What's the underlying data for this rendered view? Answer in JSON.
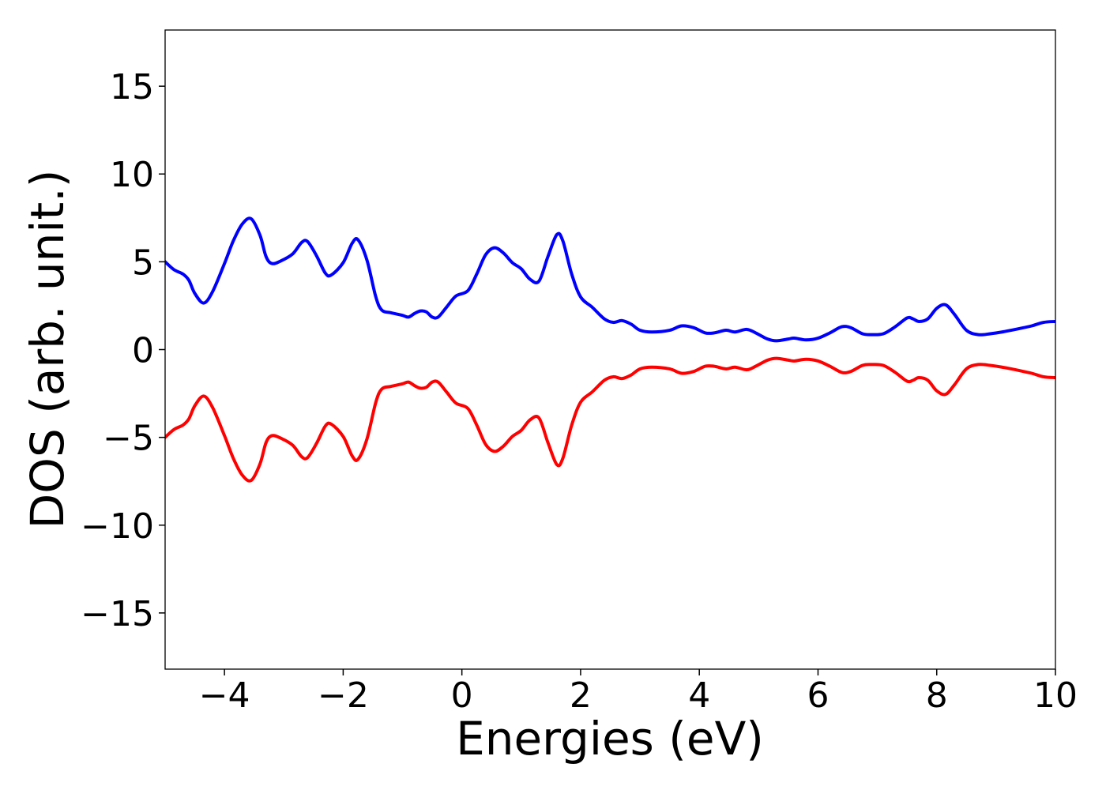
{
  "chart_data": {
    "type": "line",
    "title": "",
    "xlabel": "Energies (eV)",
    "ylabel": "DOS (arb. unit.)",
    "xlim": [
      -5,
      10
    ],
    "ylim": [
      -18.2,
      18.2
    ],
    "grid": false,
    "x_ticks": [
      -4,
      -2,
      0,
      2,
      4,
      6,
      8,
      10
    ],
    "x_tick_labels": [
      "−4",
      "−2",
      "0",
      "2",
      "4",
      "6",
      "8",
      "10"
    ],
    "y_ticks": [
      -15,
      -10,
      -5,
      0,
      5,
      10,
      15
    ],
    "y_tick_labels": [
      "−15",
      "−10",
      "−5",
      "0",
      "5",
      "10",
      "15"
    ],
    "series": [
      {
        "color": "#0000ff",
        "points": [
          [
            -5.0,
            5.0
          ],
          [
            -4.85,
            4.55
          ],
          [
            -4.7,
            4.3
          ],
          [
            -4.6,
            3.95
          ],
          [
            -4.5,
            3.2
          ],
          [
            -4.35,
            2.65
          ],
          [
            -4.2,
            3.3
          ],
          [
            -4.0,
            4.9
          ],
          [
            -3.85,
            6.2
          ],
          [
            -3.7,
            7.15
          ],
          [
            -3.55,
            7.45
          ],
          [
            -3.4,
            6.5
          ],
          [
            -3.3,
            5.3
          ],
          [
            -3.2,
            4.9
          ],
          [
            -3.05,
            5.05
          ],
          [
            -2.85,
            5.45
          ],
          [
            -2.7,
            6.1
          ],
          [
            -2.6,
            6.15
          ],
          [
            -2.45,
            5.35
          ],
          [
            -2.3,
            4.35
          ],
          [
            -2.2,
            4.25
          ],
          [
            -2.0,
            4.95
          ],
          [
            -1.85,
            6.05
          ],
          [
            -1.75,
            6.25
          ],
          [
            -1.6,
            5.1
          ],
          [
            -1.45,
            3.0
          ],
          [
            -1.35,
            2.25
          ],
          [
            -1.2,
            2.1
          ],
          [
            -1.0,
            1.95
          ],
          [
            -0.9,
            1.85
          ],
          [
            -0.8,
            2.05
          ],
          [
            -0.7,
            2.2
          ],
          [
            -0.6,
            2.15
          ],
          [
            -0.5,
            1.85
          ],
          [
            -0.4,
            1.85
          ],
          [
            -0.25,
            2.45
          ],
          [
            -0.1,
            3.05
          ],
          [
            0.1,
            3.35
          ],
          [
            0.25,
            4.3
          ],
          [
            0.4,
            5.4
          ],
          [
            0.55,
            5.8
          ],
          [
            0.7,
            5.5
          ],
          [
            0.85,
            4.95
          ],
          [
            1.0,
            4.6
          ],
          [
            1.15,
            4.0
          ],
          [
            1.3,
            3.9
          ],
          [
            1.45,
            5.3
          ],
          [
            1.6,
            6.55
          ],
          [
            1.7,
            6.2
          ],
          [
            1.85,
            4.3
          ],
          [
            2.0,
            3.0
          ],
          [
            2.2,
            2.4
          ],
          [
            2.4,
            1.75
          ],
          [
            2.55,
            1.55
          ],
          [
            2.7,
            1.65
          ],
          [
            2.85,
            1.45
          ],
          [
            3.0,
            1.1
          ],
          [
            3.2,
            1.0
          ],
          [
            3.5,
            1.1
          ],
          [
            3.7,
            1.35
          ],
          [
            3.9,
            1.25
          ],
          [
            4.1,
            0.95
          ],
          [
            4.25,
            0.95
          ],
          [
            4.45,
            1.1
          ],
          [
            4.6,
            1.0
          ],
          [
            4.8,
            1.15
          ],
          [
            4.95,
            0.95
          ],
          [
            5.15,
            0.6
          ],
          [
            5.3,
            0.5
          ],
          [
            5.5,
            0.6
          ],
          [
            5.6,
            0.65
          ],
          [
            5.8,
            0.55
          ],
          [
            6.0,
            0.65
          ],
          [
            6.2,
            0.95
          ],
          [
            6.4,
            1.3
          ],
          [
            6.55,
            1.25
          ],
          [
            6.75,
            0.9
          ],
          [
            6.9,
            0.85
          ],
          [
            7.1,
            0.9
          ],
          [
            7.3,
            1.3
          ],
          [
            7.5,
            1.8
          ],
          [
            7.6,
            1.75
          ],
          [
            7.7,
            1.6
          ],
          [
            7.85,
            1.75
          ],
          [
            8.0,
            2.35
          ],
          [
            8.15,
            2.55
          ],
          [
            8.3,
            2.0
          ],
          [
            8.5,
            1.1
          ],
          [
            8.7,
            0.85
          ],
          [
            8.9,
            0.9
          ],
          [
            9.1,
            1.0
          ],
          [
            9.4,
            1.2
          ],
          [
            9.6,
            1.35
          ],
          [
            9.8,
            1.55
          ],
          [
            10.0,
            1.6
          ]
        ]
      },
      {
        "color": "#ff0000",
        "points": [
          [
            -5.0,
            -5.0
          ],
          [
            -4.85,
            -4.55
          ],
          [
            -4.7,
            -4.3
          ],
          [
            -4.6,
            -3.95
          ],
          [
            -4.5,
            -3.2
          ],
          [
            -4.35,
            -2.65
          ],
          [
            -4.2,
            -3.3
          ],
          [
            -4.0,
            -4.9
          ],
          [
            -3.85,
            -6.2
          ],
          [
            -3.7,
            -7.15
          ],
          [
            -3.55,
            -7.45
          ],
          [
            -3.4,
            -6.5
          ],
          [
            -3.3,
            -5.3
          ],
          [
            -3.2,
            -4.9
          ],
          [
            -3.05,
            -5.05
          ],
          [
            -2.85,
            -5.45
          ],
          [
            -2.7,
            -6.1
          ],
          [
            -2.6,
            -6.15
          ],
          [
            -2.45,
            -5.35
          ],
          [
            -2.3,
            -4.35
          ],
          [
            -2.2,
            -4.25
          ],
          [
            -2.0,
            -4.95
          ],
          [
            -1.85,
            -6.05
          ],
          [
            -1.75,
            -6.25
          ],
          [
            -1.6,
            -5.1
          ],
          [
            -1.45,
            -3.0
          ],
          [
            -1.35,
            -2.25
          ],
          [
            -1.2,
            -2.1
          ],
          [
            -1.0,
            -1.95
          ],
          [
            -0.9,
            -1.85
          ],
          [
            -0.8,
            -2.05
          ],
          [
            -0.7,
            -2.2
          ],
          [
            -0.6,
            -2.15
          ],
          [
            -0.5,
            -1.85
          ],
          [
            -0.4,
            -1.85
          ],
          [
            -0.25,
            -2.45
          ],
          [
            -0.1,
            -3.05
          ],
          [
            0.1,
            -3.35
          ],
          [
            0.25,
            -4.3
          ],
          [
            0.4,
            -5.4
          ],
          [
            0.55,
            -5.8
          ],
          [
            0.7,
            -5.5
          ],
          [
            0.85,
            -4.95
          ],
          [
            1.0,
            -4.6
          ],
          [
            1.15,
            -4.0
          ],
          [
            1.3,
            -3.9
          ],
          [
            1.45,
            -5.3
          ],
          [
            1.6,
            -6.55
          ],
          [
            1.7,
            -6.2
          ],
          [
            1.85,
            -4.3
          ],
          [
            2.0,
            -3.0
          ],
          [
            2.2,
            -2.4
          ],
          [
            2.4,
            -1.75
          ],
          [
            2.55,
            -1.55
          ],
          [
            2.7,
            -1.65
          ],
          [
            2.85,
            -1.45
          ],
          [
            3.0,
            -1.1
          ],
          [
            3.2,
            -1.0
          ],
          [
            3.5,
            -1.1
          ],
          [
            3.7,
            -1.35
          ],
          [
            3.9,
            -1.25
          ],
          [
            4.1,
            -0.95
          ],
          [
            4.25,
            -0.95
          ],
          [
            4.45,
            -1.1
          ],
          [
            4.6,
            -1.0
          ],
          [
            4.8,
            -1.15
          ],
          [
            4.95,
            -0.95
          ],
          [
            5.15,
            -0.6
          ],
          [
            5.3,
            -0.5
          ],
          [
            5.5,
            -0.6
          ],
          [
            5.6,
            -0.65
          ],
          [
            5.8,
            -0.55
          ],
          [
            6.0,
            -0.65
          ],
          [
            6.2,
            -0.95
          ],
          [
            6.4,
            -1.3
          ],
          [
            6.55,
            -1.25
          ],
          [
            6.75,
            -0.9
          ],
          [
            6.9,
            -0.85
          ],
          [
            7.1,
            -0.9
          ],
          [
            7.3,
            -1.3
          ],
          [
            7.5,
            -1.8
          ],
          [
            7.6,
            -1.75
          ],
          [
            7.7,
            -1.6
          ],
          [
            7.85,
            -1.75
          ],
          [
            8.0,
            -2.35
          ],
          [
            8.15,
            -2.55
          ],
          [
            8.3,
            -2.0
          ],
          [
            8.5,
            -1.1
          ],
          [
            8.7,
            -0.85
          ],
          [
            8.9,
            -0.9
          ],
          [
            9.1,
            -1.0
          ],
          [
            9.4,
            -1.2
          ],
          [
            9.6,
            -1.35
          ],
          [
            9.8,
            -1.55
          ],
          [
            10.0,
            -1.6
          ]
        ]
      }
    ]
  }
}
